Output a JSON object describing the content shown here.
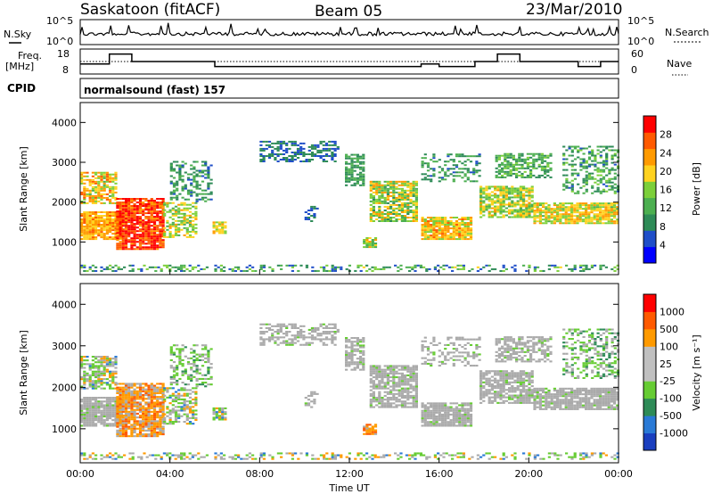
{
  "header": {
    "station": "Saskatoon (fitACF)",
    "beam": "Beam 05",
    "date": "23/Mar/2010"
  },
  "top_panel": {
    "left_label": "N.Sky",
    "right_label": "N.Search",
    "left_ticks": [
      "10^5",
      "10^0"
    ],
    "right_ticks": [
      "10^5",
      "10^0"
    ]
  },
  "freq_panel": {
    "left_label_line1": "Freq.",
    "left_label_line2": "[MHz]",
    "right_label": "Nave",
    "left_ticks": [
      "18",
      "8"
    ],
    "right_ticks": [
      "60",
      "0"
    ]
  },
  "cpid": {
    "label": "CPID",
    "program": "normalsound (fast) 157"
  },
  "colors": {
    "power_scale": [
      "#0000ff",
      "#1f4ec8",
      "#2e8b57",
      "#4caf50",
      "#7ccf3a",
      "#ffd21f",
      "#ff9a00",
      "#ff5a00",
      "#ff0000"
    ],
    "velocity_scale": [
      "#1a3fbf",
      "#2a7ad6",
      "#2e8b57",
      "#66cc33",
      "#c0c0c0",
      "#c0c0c0",
      "#ff9a00",
      "#ff5a00",
      "#ff0000"
    ],
    "ground_scatter": "#aaaaaa"
  },
  "chart_data": [
    {
      "type": "heatmap",
      "name_hint": "power",
      "xlabel": "Time UT",
      "ylabel": "Slant Range [km]",
      "x_ticks": [
        "00:00",
        "04:00",
        "08:00",
        "12:00",
        "16:00",
        "20:00",
        "00:00"
      ],
      "xlim": [
        0,
        24
      ],
      "y_ticks": [
        "4000",
        "3000",
        "2000",
        "1000"
      ],
      "y_tick_values": [
        4000,
        3000,
        2000,
        1000
      ],
      "ylim": [
        180,
        4500
      ],
      "colorbar_label": "Power [dB]",
      "colorbar_ticks": [
        "28",
        "24",
        "20",
        "16",
        "12",
        "8",
        "4"
      ],
      "colorbar_tick_values": [
        28,
        24,
        20,
        16,
        12,
        8,
        4
      ],
      "colorbar_range": [
        0,
        32
      ]
    },
    {
      "type": "heatmap",
      "name_hint": "velocity",
      "xlabel": "Time UT",
      "ylabel": "Slant Range [km]",
      "x_ticks": [
        "00:00",
        "04:00",
        "08:00",
        "12:00",
        "16:00",
        "20:00",
        "00:00"
      ],
      "xlim": [
        0,
        24
      ],
      "y_ticks": [
        "4000",
        "3000",
        "2000",
        "1000"
      ],
      "y_tick_values": [
        4000,
        3000,
        2000,
        1000
      ],
      "ylim": [
        180,
        4500
      ],
      "colorbar_label": "Velocity [m s⁻¹]",
      "colorbar_ticks": [
        "1000",
        "500",
        "100",
        "25",
        "-25",
        "-100",
        "-500",
        "-1000"
      ]
    }
  ]
}
